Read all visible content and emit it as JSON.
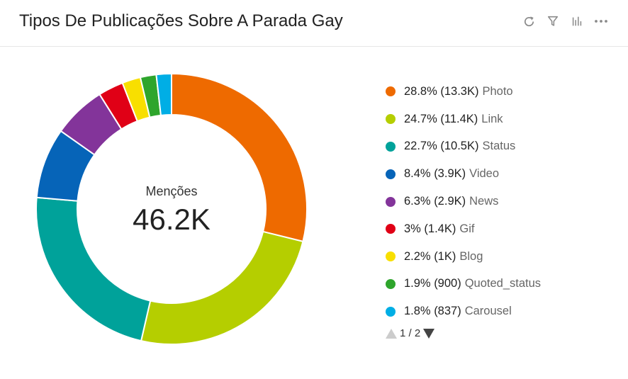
{
  "header": {
    "title": "Tipos De Publicações Sobre A Parada Gay",
    "tools": [
      "refresh-icon",
      "filter-icon",
      "bar-chart-icon",
      "more-icon"
    ]
  },
  "center": {
    "label": "Menções",
    "value": "46.2K"
  },
  "legend": [
    {
      "pct": "28.8% (13.3K)",
      "name": "Photo",
      "color": "#ee6a00"
    },
    {
      "pct": "24.7% (11.4K)",
      "name": "Link",
      "color": "#b5ce00"
    },
    {
      "pct": "22.7% (10.5K)",
      "name": "Status",
      "color": "#00a29a"
    },
    {
      "pct": "8.4% (3.9K)",
      "name": "Video",
      "color": "#0664b8"
    },
    {
      "pct": "6.3% (2.9K)",
      "name": "News",
      "color": "#83349a"
    },
    {
      "pct": "3% (1.4K)",
      "name": "Gif",
      "color": "#e00016"
    },
    {
      "pct": "2.2% (1K)",
      "name": "Blog",
      "color": "#f8df00"
    },
    {
      "pct": "1.9% (900)",
      "name": "Quoted_status",
      "color": "#2ea52c"
    },
    {
      "pct": "1.8% (837)",
      "name": "Carousel",
      "color": "#00aee5"
    }
  ],
  "pager": {
    "text": "1 / 2"
  },
  "chart_data": {
    "type": "pie",
    "categories": [
      "Photo",
      "Link",
      "Status",
      "Video",
      "News",
      "Gif",
      "Blog",
      "Quoted_status",
      "Carousel"
    ],
    "values": [
      28.8,
      24.7,
      22.7,
      8.4,
      6.3,
      3.0,
      2.2,
      1.9,
      1.8
    ],
    "counts": [
      "13.3K",
      "11.4K",
      "10.5K",
      "3.9K",
      "2.9K",
      "1.4K",
      "1K",
      "900",
      "837"
    ],
    "colors": [
      "#ee6a00",
      "#b5ce00",
      "#00a29a",
      "#0664b8",
      "#83349a",
      "#e00016",
      "#f8df00",
      "#2ea52c",
      "#00aee5"
    ],
    "title": "Tipos De Publicações Sobre A Parada Gay",
    "legend_position": "right",
    "style": "donut"
  }
}
